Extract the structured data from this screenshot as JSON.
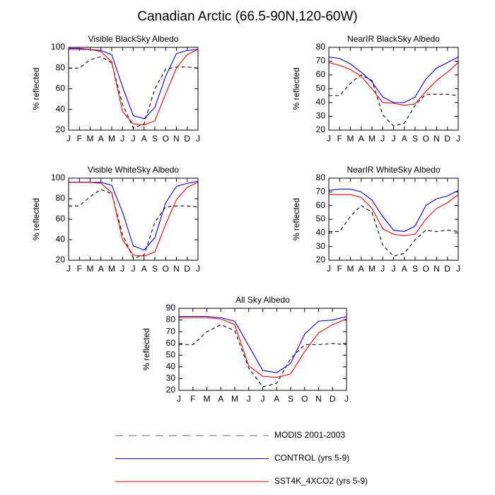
{
  "title": "Canadian Arctic (66.5-90N,120-60W)",
  "chart_data": [
    {
      "type": "line",
      "title": "Visible BlackSky Albedo",
      "y_label": "% reflected",
      "categories": [
        "J",
        "F",
        "M",
        "A",
        "M",
        "J",
        "J",
        "A",
        "S",
        "O",
        "N",
        "D",
        "J"
      ],
      "ylim": [
        20,
        100
      ],
      "yticks": [
        20,
        40,
        60,
        80,
        100
      ],
      "grid": false,
      "series": [
        {
          "name": "MODIS 2001-2003",
          "color": "#000000",
          "dash": true,
          "values": [
            80,
            80,
            88,
            91,
            85,
            45,
            22,
            26,
            60,
            79,
            81,
            81,
            80
          ]
        },
        {
          "name": "CONTROL (yrs 5-9)",
          "color": "#0000ff",
          "values": [
            99,
            99,
            98,
            97,
            93,
            62,
            34,
            31,
            42,
            72,
            94,
            97,
            98
          ]
        },
        {
          "name": "SST4K_4XCO2 (yrs 5-9)",
          "color": "#ff0000",
          "values": [
            98,
            98,
            98,
            96,
            86,
            38,
            26,
            25,
            29,
            55,
            80,
            93,
            98
          ]
        }
      ]
    },
    {
      "type": "line",
      "title": "NearIR BlackSky Albedo",
      "y_label": "% reflected",
      "categories": [
        "J",
        "F",
        "M",
        "A",
        "M",
        "J",
        "J",
        "A",
        "S",
        "O",
        "N",
        "D",
        "J"
      ],
      "ylim": [
        20,
        80
      ],
      "yticks": [
        20,
        30,
        40,
        50,
        60,
        70,
        80
      ],
      "grid": false,
      "series": [
        {
          "name": "MODIS 2001-2003",
          "color": "#000000",
          "dash": true,
          "values": [
            45,
            45,
            54,
            60,
            56,
            31,
            23,
            25,
            38,
            46,
            46,
            46,
            45
          ]
        },
        {
          "name": "CONTROL (yrs 5-9)",
          "color": "#0000ff",
          "values": [
            73,
            72,
            68,
            62,
            55,
            44,
            40,
            40,
            44,
            57,
            65,
            69,
            73
          ]
        },
        {
          "name": "SST4K_4XCO2 (yrs 5-9)",
          "color": "#ff0000",
          "values": [
            69,
            67,
            64,
            59,
            50,
            40,
            39.5,
            38,
            39,
            48,
            56,
            62,
            69
          ]
        }
      ]
    },
    {
      "type": "line",
      "title": "Visible WhiteSky Albedo",
      "y_label": "% reflected",
      "categories": [
        "J",
        "F",
        "M",
        "A",
        "M",
        "J",
        "J",
        "A",
        "S",
        "O",
        "N",
        "D",
        "J"
      ],
      "ylim": [
        20,
        100
      ],
      "yticks": [
        20,
        40,
        60,
        80,
        100
      ],
      "grid": false,
      "series": [
        {
          "name": "MODIS 2001-2003",
          "color": "#000000",
          "dash": true,
          "values": [
            73,
            73,
            82,
            89,
            85,
            45,
            22,
            25,
            57,
            72,
            73,
            73,
            72
          ]
        },
        {
          "name": "CONTROL (yrs 5-9)",
          "color": "#0000ff",
          "values": [
            96,
            96,
            96,
            96,
            93,
            67,
            34,
            30,
            42,
            76,
            92,
            95,
            97
          ]
        },
        {
          "name": "SST4K_4XCO2 (yrs 5-9)",
          "color": "#ff0000",
          "values": [
            96,
            96,
            96,
            95,
            86,
            40,
            25,
            24,
            28,
            55,
            79,
            91,
            96
          ]
        }
      ]
    },
    {
      "type": "line",
      "title": "NearIR WhiteSky Albedo",
      "y_label": "% reflected",
      "categories": [
        "J",
        "F",
        "M",
        "A",
        "M",
        "J",
        "J",
        "A",
        "S",
        "O",
        "N",
        "D",
        "J"
      ],
      "ylim": [
        20,
        80
      ],
      "yticks": [
        20,
        30,
        40,
        50,
        60,
        70,
        80
      ],
      "grid": false,
      "series": [
        {
          "name": "MODIS 2001-2003",
          "color": "#000000",
          "dash": true,
          "values": [
            41,
            41,
            52,
            60,
            55,
            31,
            23,
            25,
            35,
            42,
            41,
            42,
            41
          ]
        },
        {
          "name": "CONTROL (yrs 5-9)",
          "color": "#0000ff",
          "values": [
            71,
            72,
            72,
            70,
            64,
            52,
            42,
            41,
            45,
            60,
            65,
            67,
            71
          ]
        },
        {
          "name": "SST4K_4XCO2 (yrs 5-9)",
          "color": "#ff0000",
          "values": [
            68,
            68,
            68,
            66,
            58,
            43,
            39,
            38,
            39,
            50,
            58,
            62,
            68
          ]
        }
      ]
    },
    {
      "type": "line",
      "title": "All Sky Albedo",
      "y_label": "% reflected",
      "categories": [
        "J",
        "F",
        "M",
        "A",
        "M",
        "J",
        "J",
        "A",
        "S",
        "O",
        "N",
        "D",
        "J"
      ],
      "ylim": [
        20,
        90
      ],
      "yticks": [
        20,
        30,
        40,
        50,
        60,
        70,
        80,
        90
      ],
      "grid": false,
      "series": [
        {
          "name": "MODIS 2001-2003",
          "color": "#000000",
          "dash": true,
          "values": [
            59,
            59,
            70,
            76,
            71,
            39,
            23,
            26,
            47,
            59,
            59,
            60,
            59
          ]
        },
        {
          "name": "CONTROL (yrs 5-9)",
          "color": "#0000ff",
          "values": [
            83,
            83,
            83,
            82,
            79,
            58,
            37,
            35,
            43,
            68,
            79,
            80,
            83
          ]
        },
        {
          "name": "SST4K_4XCO2 (yrs 5-9)",
          "color": "#ff0000",
          "values": [
            82,
            82,
            82,
            81,
            76,
            41,
            32,
            31,
            34,
            53,
            69,
            76,
            81
          ]
        }
      ]
    }
  ]
}
